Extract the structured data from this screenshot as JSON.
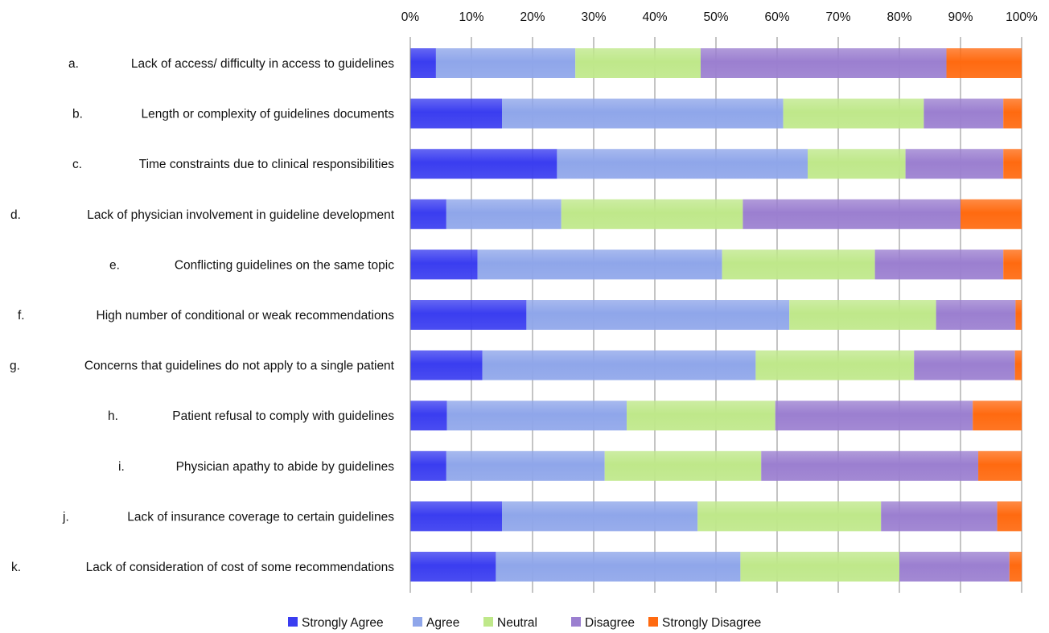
{
  "chart_data": {
    "type": "bar",
    "stacked": true,
    "orientation": "horizontal",
    "title": "",
    "xlabel": "",
    "ylabel": "",
    "xlim": [
      0,
      100
    ],
    "x_ticks": [
      "0%",
      "10%",
      "20%",
      "30%",
      "40%",
      "50%",
      "60%",
      "70%",
      "80%",
      "90%",
      "100%"
    ],
    "grid": "vertical",
    "legend_position": "bottom",
    "categories": [
      {
        "letter": "a.",
        "label": "Lack of access/ difficulty in access to guidelines"
      },
      {
        "letter": "b.",
        "label": "Length or complexity of guidelines documents"
      },
      {
        "letter": "c.",
        "label": "Time constraints due to clinical responsibilities"
      },
      {
        "letter": "d.",
        "label": "Lack of physician involvement in guideline development"
      },
      {
        "letter": "e.",
        "label": "Conflicting guidelines on the same topic"
      },
      {
        "letter": "f.",
        "label": "High number of conditional or weak recommendations"
      },
      {
        "letter": "g.",
        "label": "Concerns that guidelines do not apply to a single patient"
      },
      {
        "letter": "h.",
        "label": "Patient refusal to comply with guidelines"
      },
      {
        "letter": "i.",
        "label": "Physician apathy to abide by guidelines"
      },
      {
        "letter": "j.",
        "label": "Lack of insurance coverage to certain guidelines"
      },
      {
        "letter": "k.",
        "label": "Lack of consideration of cost of some recommendations"
      }
    ],
    "series": [
      {
        "name": "Strongly Agree",
        "color": "#3a3df0",
        "values": [
          4.2,
          15.0,
          24.0,
          5.9,
          11.0,
          19.0,
          11.8,
          6.0,
          5.9,
          15.0,
          14.0
        ]
      },
      {
        "name": "Agree",
        "color": "#8fa6ea",
        "values": [
          22.8,
          46.0,
          41.0,
          18.8,
          40.0,
          43.0,
          44.7,
          29.4,
          25.9,
          32.0,
          40.0
        ]
      },
      {
        "name": "Neutral",
        "color": "#bfe88a",
        "values": [
          20.5,
          23.0,
          16.0,
          29.7,
          25.0,
          24.0,
          25.9,
          24.3,
          25.6,
          30.0,
          26.0
        ]
      },
      {
        "name": "Disagree",
        "color": "#9b7fd0",
        "values": [
          40.2,
          13.0,
          16.0,
          35.6,
          21.0,
          13.0,
          16.5,
          32.3,
          35.5,
          19.0,
          18.0
        ]
      },
      {
        "name": "Strongly Disagree",
        "color": "#ff6a10",
        "values": [
          12.3,
          3.0,
          3.0,
          10.0,
          3.0,
          1.0,
          1.1,
          8.0,
          7.1,
          4.0,
          2.0
        ]
      }
    ]
  }
}
